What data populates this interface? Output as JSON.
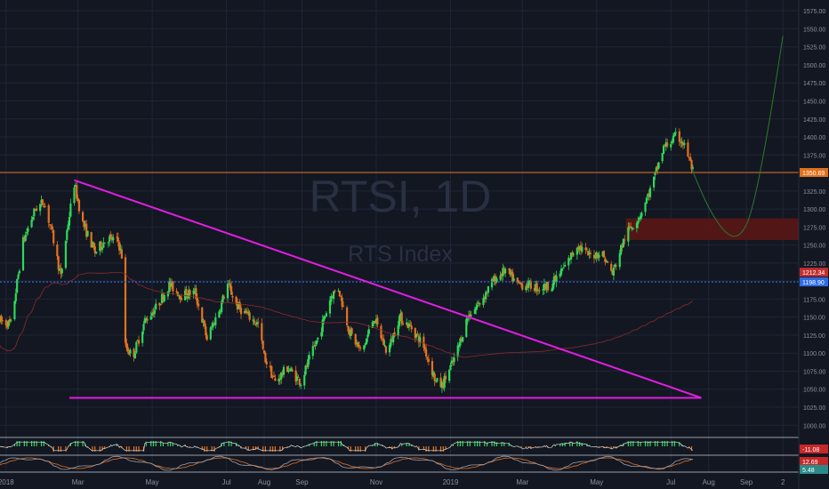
{
  "watermark": {
    "symbol": "RTSI, 1D",
    "name": "RTS Index"
  },
  "colors": {
    "background": "#131722",
    "grid": "#1f2536",
    "up": "#2fd85a",
    "down": "#e3721f",
    "trendline": "#e11ee1",
    "resistance_line": "#e0701c",
    "support_line": "#2e6be6",
    "zone": "#5a1616",
    "projection": "#2a7a2a",
    "axis_text": "#8a90a0"
  },
  "chart_data": {
    "type": "candlestick",
    "title": "",
    "timeframe": "1D",
    "y_ticks": [
      1000,
      1025,
      1050,
      1075,
      1100,
      1125,
      1150,
      1175,
      1200,
      1225,
      1250,
      1275,
      1300,
      1325,
      1350,
      1375,
      1400,
      1425,
      1450,
      1475,
      1500,
      1525,
      1550,
      1575
    ],
    "y_tick_labels": [
      "1000.00",
      "1025.00",
      "1050.00",
      "1075.00",
      "1100.00",
      "1125.00",
      "1150.00",
      "1175.00",
      "1200.00",
      "1225.00",
      "1250.00",
      "1275.00",
      "1300.00",
      "1325.00",
      "1350.00",
      "1375.00",
      "1400.00",
      "1425.00",
      "1450.00",
      "1475.00",
      "1500.00",
      "1525.00",
      "1550.00",
      "1575.00"
    ],
    "ylim": [
      988,
      1590
    ],
    "x_ticks": [
      "2018-01-01",
      "2018-03-01",
      "2018-05-01",
      "2018-07-01",
      "2018-08-01",
      "2018-09-01",
      "2018-11-01",
      "2019-01-01",
      "2019-03-01",
      "2019-05-01",
      "2019-07-01",
      "2019-08-01",
      "2019-09-01",
      "2019-10-01"
    ],
    "x_tick_labels": [
      "2018",
      "Mar",
      "May",
      "Jul",
      "Aug",
      "Sep",
      "Nov",
      "2019",
      "Mar",
      "May",
      "Jul",
      "Aug",
      "Sep",
      "2"
    ],
    "xlim": [
      "2017-12-27",
      "2019-10-14"
    ],
    "price_path": [
      [
        "2017-12-27",
        1145
      ],
      [
        "2018-01-05",
        1140
      ],
      [
        "2018-01-15",
        1255
      ],
      [
        "2018-01-25",
        1300
      ],
      [
        "2018-02-01",
        1310
      ],
      [
        "2018-02-08",
        1265
      ],
      [
        "2018-02-15",
        1205
      ],
      [
        "2018-02-20",
        1270
      ],
      [
        "2018-02-26",
        1335
      ],
      [
        "2018-03-05",
        1280
      ],
      [
        "2018-03-15",
        1240
      ],
      [
        "2018-03-25",
        1260
      ],
      [
        "2018-04-03",
        1255
      ],
      [
        "2018-04-06",
        1235
      ],
      [
        "2018-04-09",
        1110
      ],
      [
        "2018-04-15",
        1095
      ],
      [
        "2018-04-25",
        1145
      ],
      [
        "2018-05-05",
        1165
      ],
      [
        "2018-05-15",
        1195
      ],
      [
        "2018-05-25",
        1180
      ],
      [
        "2018-06-05",
        1185
      ],
      [
        "2018-06-15",
        1120
      ],
      [
        "2018-06-25",
        1160
      ],
      [
        "2018-07-02",
        1195
      ],
      [
        "2018-07-10",
        1165
      ],
      [
        "2018-07-20",
        1150
      ],
      [
        "2018-07-27",
        1140
      ],
      [
        "2018-08-01",
        1095
      ],
      [
        "2018-08-10",
        1060
      ],
      [
        "2018-08-20",
        1080
      ],
      [
        "2018-08-31",
        1060
      ],
      [
        "2018-09-08",
        1095
      ],
      [
        "2018-09-15",
        1125
      ],
      [
        "2018-09-25",
        1180
      ],
      [
        "2018-10-01",
        1190
      ],
      [
        "2018-10-10",
        1130
      ],
      [
        "2018-10-20",
        1100
      ],
      [
        "2018-10-30",
        1150
      ],
      [
        "2018-11-10",
        1100
      ],
      [
        "2018-11-20",
        1150
      ],
      [
        "2018-11-30",
        1135
      ],
      [
        "2018-12-10",
        1110
      ],
      [
        "2018-12-20",
        1060
      ],
      [
        "2018-12-25",
        1055
      ],
      [
        "2019-01-05",
        1095
      ],
      [
        "2019-01-15",
        1150
      ],
      [
        "2019-01-25",
        1170
      ],
      [
        "2019-02-05",
        1200
      ],
      [
        "2019-02-15",
        1215
      ],
      [
        "2019-02-25",
        1195
      ],
      [
        "2019-03-05",
        1195
      ],
      [
        "2019-03-15",
        1190
      ],
      [
        "2019-03-25",
        1195
      ],
      [
        "2019-04-05",
        1220
      ],
      [
        "2019-04-15",
        1250
      ],
      [
        "2019-04-25",
        1235
      ],
      [
        "2019-05-05",
        1240
      ],
      [
        "2019-05-14",
        1210
      ],
      [
        "2019-05-25",
        1265
      ],
      [
        "2019-06-05",
        1290
      ],
      [
        "2019-06-15",
        1330
      ],
      [
        "2019-06-25",
        1385
      ],
      [
        "2019-07-05",
        1400
      ],
      [
        "2019-07-10",
        1395
      ],
      [
        "2019-07-15",
        1375
      ],
      [
        "2019-07-19",
        1352
      ]
    ],
    "trendline": [
      [
        "2018-02-26",
        1340
      ],
      [
        "2019-07-26",
        1038
      ]
    ],
    "support_line": [
      [
        "2018-02-22",
        1038
      ],
      [
        "2019-07-26",
        1038
      ]
    ],
    "resistance_level": {
      "y": 1350.69,
      "label": "1350.69"
    },
    "blue_level": {
      "y": 1198.9,
      "label": "1198.90"
    },
    "ma_value_label": {
      "y": 1212.34,
      "label": "1212.34"
    },
    "zone": {
      "x0": "2019-05-25",
      "x1": "2019-10-14",
      "y0": 1257,
      "y1": 1287
    },
    "projection": [
      [
        "2019-07-19",
        1352
      ],
      [
        "2019-08-01",
        1300
      ],
      [
        "2019-08-15",
        1265
      ],
      [
        "2019-08-26",
        1260
      ],
      [
        "2019-09-05",
        1290
      ],
      [
        "2019-09-18",
        1400
      ],
      [
        "2019-10-01",
        1540
      ]
    ],
    "indicator1": {
      "label": "-11.08"
    },
    "indicator2": {
      "labels": [
        "12.69",
        "5.48"
      ]
    }
  }
}
